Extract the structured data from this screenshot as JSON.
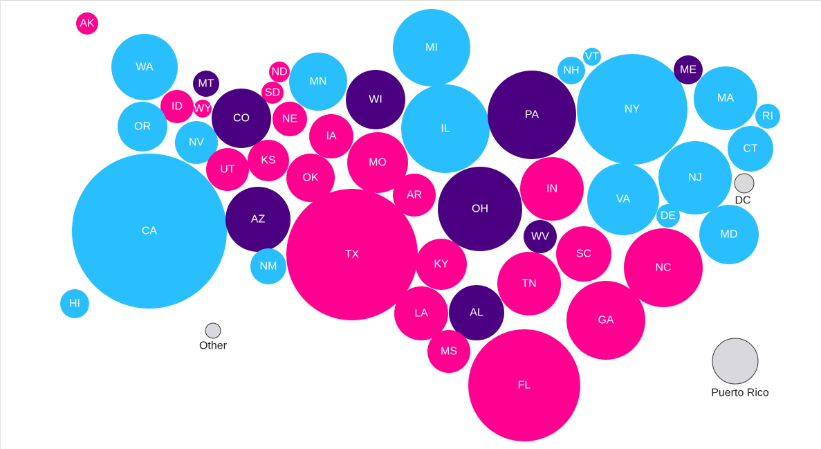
{
  "colors": {
    "blue": "#29bfff",
    "pink": "#ff0091",
    "purple": "#4b0082",
    "gray": "#d9d9dd"
  },
  "states": [
    {
      "label": "AK",
      "group": "pink"
    },
    {
      "label": "WA",
      "group": "blue"
    },
    {
      "label": "MT",
      "group": "purple"
    },
    {
      "label": "ID",
      "group": "pink"
    },
    {
      "label": "WY",
      "group": "pink"
    },
    {
      "label": "ND",
      "group": "pink"
    },
    {
      "label": "SD",
      "group": "pink"
    },
    {
      "label": "MN",
      "group": "blue"
    },
    {
      "label": "CO",
      "group": "purple"
    },
    {
      "label": "NE",
      "group": "pink"
    },
    {
      "label": "OR",
      "group": "blue"
    },
    {
      "label": "NV",
      "group": "blue"
    },
    {
      "label": "UT",
      "group": "pink"
    },
    {
      "label": "KS",
      "group": "pink"
    },
    {
      "label": "IA",
      "group": "pink"
    },
    {
      "label": "WI",
      "group": "purple"
    },
    {
      "label": "MI",
      "group": "blue"
    },
    {
      "label": "IL",
      "group": "blue"
    },
    {
      "label": "PA",
      "group": "purple"
    },
    {
      "label": "NY",
      "group": "blue"
    },
    {
      "label": "NH",
      "group": "blue"
    },
    {
      "label": "VT",
      "group": "blue"
    },
    {
      "label": "ME",
      "group": "purple"
    },
    {
      "label": "MA",
      "group": "blue"
    },
    {
      "label": "RI",
      "group": "blue"
    },
    {
      "label": "CT",
      "group": "blue"
    },
    {
      "label": "NJ",
      "group": "blue"
    },
    {
      "label": "CA",
      "group": "blue"
    },
    {
      "label": "AZ",
      "group": "purple"
    },
    {
      "label": "OK",
      "group": "pink"
    },
    {
      "label": "MO",
      "group": "pink"
    },
    {
      "label": "AR",
      "group": "pink"
    },
    {
      "label": "OH",
      "group": "purple"
    },
    {
      "label": "IN",
      "group": "pink"
    },
    {
      "label": "VA",
      "group": "blue"
    },
    {
      "label": "DE",
      "group": "blue"
    },
    {
      "label": "MD",
      "group": "blue"
    },
    {
      "label": "TX",
      "group": "pink"
    },
    {
      "label": "NM",
      "group": "blue"
    },
    {
      "label": "WV",
      "group": "purple"
    },
    {
      "label": "KY",
      "group": "pink"
    },
    {
      "label": "SC",
      "group": "pink"
    },
    {
      "label": "NC",
      "group": "pink"
    },
    {
      "label": "TN",
      "group": "pink"
    },
    {
      "label": "LA",
      "group": "pink"
    },
    {
      "label": "AL",
      "group": "purple"
    },
    {
      "label": "GA",
      "group": "pink"
    },
    {
      "label": "MS",
      "group": "pink"
    },
    {
      "label": "FL",
      "group": "pink"
    },
    {
      "label": "HI",
      "group": "blue"
    }
  ],
  "territories": [
    {
      "label": "DC",
      "group": "gray"
    },
    {
      "label": "Other",
      "group": "gray"
    },
    {
      "label": "Puerto Rico",
      "group": "gray"
    }
  ]
}
